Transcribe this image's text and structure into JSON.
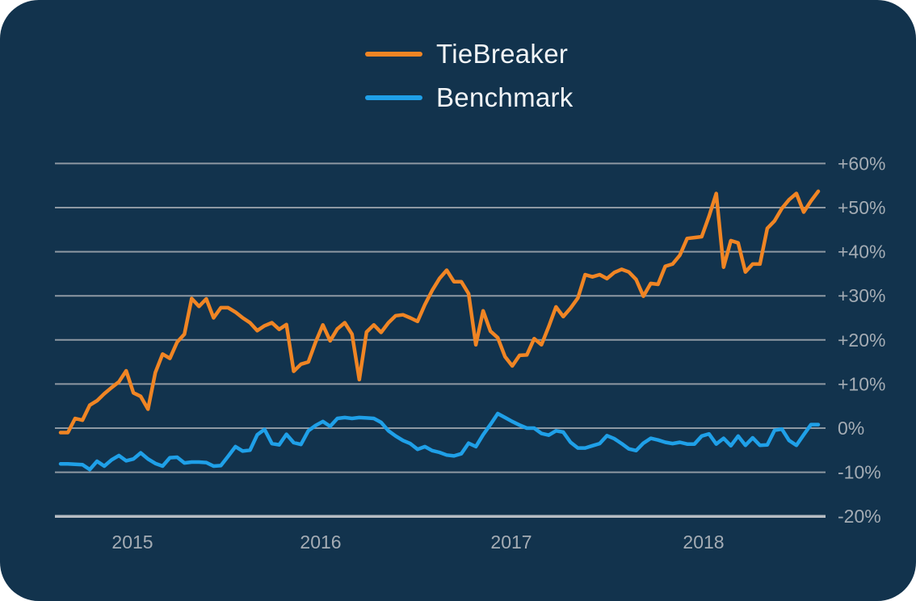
{
  "colors": {
    "outside_background": "#FFFFFF",
    "panel_background": "#12334D",
    "gridline": "#8E99A3",
    "axis_line": "#B7BDC3",
    "tick_label": "#A4ACB4",
    "legend_text": "#F2F5F7",
    "tiebreaker": "#F08524",
    "benchmark": "#1FA0E8"
  },
  "chart_data": {
    "type": "line",
    "title": "",
    "legend_position": "top",
    "grid": "horizontal",
    "legend": [
      {
        "label": "TieBreaker",
        "color": "#F08524"
      },
      {
        "label": "Benchmark",
        "color": "#1FA0E8"
      }
    ],
    "x_axis": {
      "tick_labels": [
        "2015",
        "2016",
        "2017",
        "2018"
      ]
    },
    "y_axis": {
      "side": "right",
      "unit": "%",
      "ylim": [
        -20,
        60
      ],
      "tick_values": [
        60,
        50,
        40,
        30,
        20,
        10,
        0,
        -10,
        -20
      ],
      "tick_labels": [
        "+60%",
        "+50%",
        "+40%",
        "+30%",
        "+20%",
        "+10%",
        "0%",
        "-10%",
        "-20%"
      ]
    },
    "series": [
      {
        "name": "TieBreaker",
        "color": "#F08524",
        "unit": "%",
        "values": [
          -1.0,
          -1.0,
          2.2,
          1.8,
          5.2,
          6.2,
          7.8,
          9.2,
          10.5,
          13.0,
          8.0,
          7.2,
          4.3,
          12.6,
          16.8,
          15.8,
          19.5,
          21.3,
          29.4,
          27.6,
          29.3,
          25.0,
          27.3,
          27.3,
          26.3,
          25.0,
          23.9,
          22.1,
          23.2,
          23.9,
          22.4,
          23.5,
          12.9,
          14.5,
          15.0,
          19.5,
          23.4,
          19.8,
          22.5,
          23.9,
          21.3,
          11.0,
          21.8,
          23.4,
          21.7,
          23.9,
          25.5,
          25.7,
          25.0,
          24.2,
          28.0,
          31.2,
          33.9,
          35.8,
          33.2,
          33.2,
          30.5,
          18.9,
          26.6,
          22.0,
          20.5,
          16.2,
          14.1,
          16.5,
          16.6,
          20.3,
          18.9,
          23.0,
          27.5,
          25.3,
          27.2,
          29.5,
          34.8,
          34.3,
          34.8,
          33.9,
          35.3,
          36.0,
          35.4,
          33.7,
          29.9,
          32.8,
          32.6,
          36.7,
          37.2,
          39.2,
          43.0,
          43.2,
          43.4,
          48.0,
          53.2,
          36.5,
          42.5,
          42.0,
          35.4,
          37.2,
          37.2,
          45.3,
          47.0,
          49.8,
          51.8,
          53.2,
          49.0,
          51.5,
          53.7
        ]
      },
      {
        "name": "Benchmark",
        "color": "#1FA0E8",
        "unit": "%",
        "values": [
          -8.1,
          -8.1,
          -8.2,
          -8.3,
          -9.4,
          -7.5,
          -8.6,
          -7.2,
          -6.2,
          -7.4,
          -7.0,
          -5.6,
          -7.0,
          -8.0,
          -8.6,
          -6.7,
          -6.6,
          -7.9,
          -7.7,
          -7.7,
          -7.8,
          -8.6,
          -8.5,
          -6.4,
          -4.2,
          -5.2,
          -5.0,
          -1.5,
          -0.3,
          -3.5,
          -3.8,
          -1.4,
          -3.3,
          -3.7,
          -0.6,
          0.6,
          1.5,
          0.4,
          2.2,
          2.4,
          2.2,
          2.4,
          2.3,
          2.2,
          1.3,
          -0.6,
          -1.8,
          -2.8,
          -3.5,
          -4.8,
          -4.2,
          -5.1,
          -5.5,
          -6.1,
          -6.3,
          -5.8,
          -3.4,
          -4.2,
          -1.5,
          0.8,
          3.3,
          2.4,
          1.5,
          0.7,
          0.0,
          0.0,
          -1.2,
          -1.6,
          -0.6,
          -0.9,
          -3.2,
          -4.5,
          -4.5,
          -4.0,
          -3.5,
          -1.7,
          -2.4,
          -3.5,
          -4.7,
          -5.1,
          -3.4,
          -2.3,
          -2.7,
          -3.2,
          -3.5,
          -3.2,
          -3.6,
          -3.6,
          -1.8,
          -1.3,
          -3.6,
          -2.3,
          -4.0,
          -1.8,
          -3.9,
          -2.2,
          -3.9,
          -3.8,
          -0.5,
          -0.2,
          -2.8,
          -3.9,
          -1.5,
          0.8,
          0.8
        ]
      }
    ]
  }
}
